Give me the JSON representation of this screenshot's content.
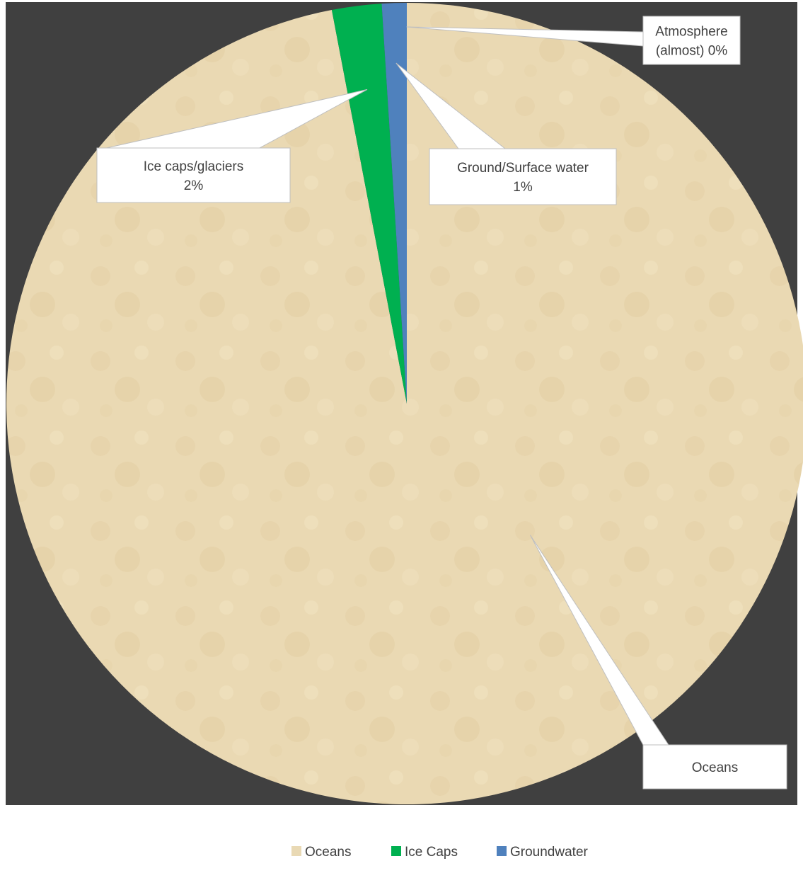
{
  "chart_data": {
    "type": "pie",
    "title": "",
    "series": [
      {
        "values": [
          97,
          2,
          1,
          0
        ],
        "slices": [
          {
            "name": "Oceans",
            "value": 97,
            "color": "#e9d9b4",
            "callout": [
              "Oceans"
            ]
          },
          {
            "name": "Ice Caps",
            "value": 2,
            "color": "#00b050",
            "callout": [
              "Ice caps/glaciers",
              "2%"
            ]
          },
          {
            "name": "Groundwater",
            "value": 1,
            "color": "#4f81bd",
            "callout": [
              "Ground/Surface water",
              "1%"
            ]
          },
          {
            "name": "Atmosphere",
            "value": 0,
            "color": "#ffffff",
            "callout": [
              "Atmosphere",
              "(almost) 0%"
            ]
          }
        ]
      }
    ],
    "legend": {
      "position": "bottom",
      "entries": [
        {
          "label": "Oceans",
          "color": "#e9d9b4"
        },
        {
          "label": "Ice Caps",
          "color": "#00b050"
        },
        {
          "label": "Groundwater",
          "color": "#4f81bd"
        }
      ]
    },
    "plot_background": "#404040"
  }
}
